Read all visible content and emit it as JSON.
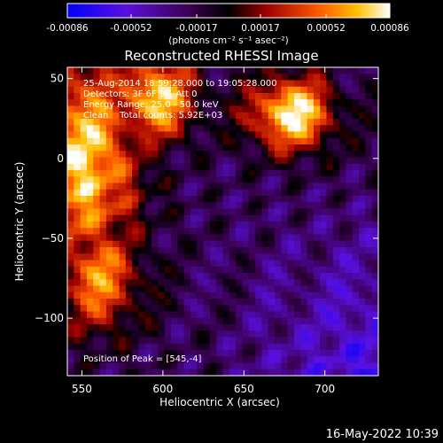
{
  "colorbar": {
    "tick_labels": [
      "-0.00086",
      "-0.00052",
      "-0.00017",
      "0.00017",
      "0.00052",
      "0.00086"
    ],
    "tick_values": [
      -0.00086,
      -0.00052,
      -0.00017,
      0.00017,
      0.00052,
      0.00086
    ],
    "range": [
      -0.00086,
      0.00086
    ],
    "unit_label": "(photons cm⁻² s⁻¹ asec⁻²)",
    "colormap": [
      "#0000ff",
      "#7a00cc",
      "#000000",
      "#b40000",
      "#ff6a00",
      "#ffd200",
      "#ffffff"
    ]
  },
  "chart_data": {
    "type": "heatmap",
    "title": "Reconstructed RHESSI Image",
    "xlabel": "Heliocentric X (arcsec)",
    "ylabel": "Heliocentric Y (arcsec)",
    "xlim": [
      541,
      733
    ],
    "ylim": [
      -136,
      57
    ],
    "xticks": [
      550,
      600,
      650,
      700
    ],
    "yticks": [
      50,
      0,
      -50,
      -100
    ],
    "grid": false,
    "peak_position": [
      545,
      -4
    ],
    "annotations": [
      "25-Aug-2014 18:59:28.000 to 19:05:28.000",
      "Detectors: 3F 6F 9F, Att 0",
      "Energy Range: 25.0 - 50.0 keV",
      "Clean    Total counts: 5.92E+03"
    ],
    "peak_text": "Position of Peak = [545,-4]"
  },
  "footer": {
    "timestamp": "16-May-2022 10:39"
  }
}
